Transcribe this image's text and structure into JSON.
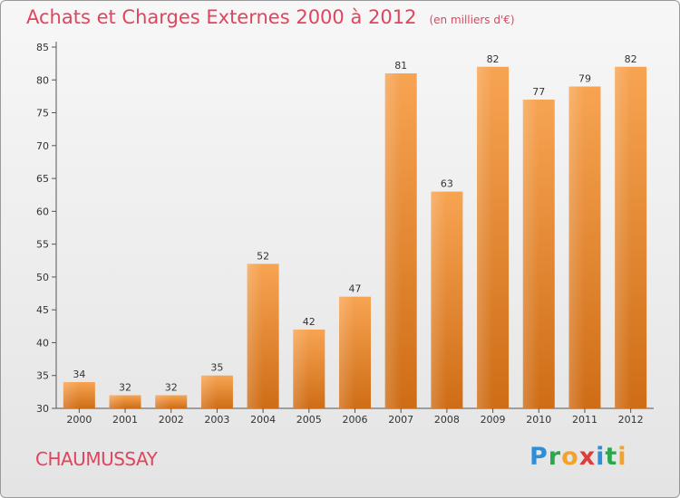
{
  "title": "Achats et Charges Externes 2000 à 2012",
  "subtitle": "(en milliers d'€)",
  "place": "CHAUMUSSAY",
  "logo": {
    "letters": [
      {
        "ch": "P",
        "color": "#2e8fd8"
      },
      {
        "ch": "r",
        "color": "#2aa84a"
      },
      {
        "ch": "o",
        "color": "#f2a32a"
      },
      {
        "ch": "x",
        "color": "#e03c3c"
      },
      {
        "ch": "i",
        "color": "#2e8fd8"
      },
      {
        "ch": "t",
        "color": "#2aa84a"
      },
      {
        "ch": "i",
        "color": "#f2a32a"
      }
    ]
  },
  "chart_data": {
    "type": "bar",
    "title": "Achats et Charges Externes 2000 à 2012",
    "subtitle": "(en milliers d'€)",
    "categories": [
      "2000",
      "2001",
      "2002",
      "2003",
      "2004",
      "2005",
      "2006",
      "2007",
      "2008",
      "2009",
      "2010",
      "2011",
      "2012"
    ],
    "values": [
      34,
      32,
      32,
      35,
      52,
      42,
      47,
      81,
      63,
      82,
      77,
      79,
      82
    ],
    "ylim": [
      30,
      85
    ],
    "yticks": [
      30,
      35,
      40,
      45,
      50,
      55,
      60,
      65,
      70,
      75,
      80,
      85
    ],
    "grid": false,
    "bar_color_top": "#f7a452",
    "bar_color_bottom": "#cf6d16"
  }
}
